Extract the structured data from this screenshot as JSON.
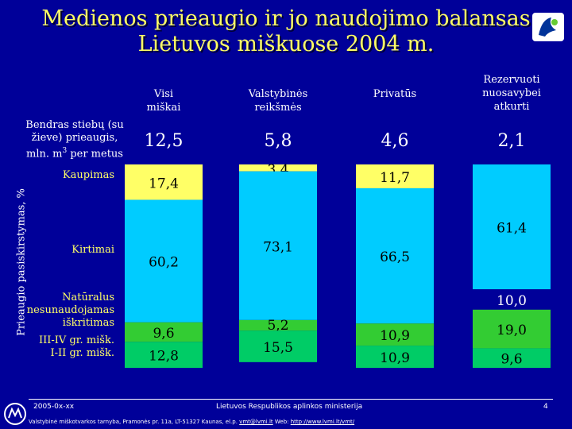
{
  "page": {
    "title_line1": "Medienos prieaugio ir jo naudojimo balansas",
    "title_line2": "Lietuvos miškuose 2004 m.",
    "row_header_line1": "Bendras stiebų (su",
    "row_header_line2": "žieve) prieaugis,",
    "row_header_line3": "mln. m",
    "row_header_sup": "3",
    "row_header_line3b": " per metus",
    "footer_date": "2005-0x-xx",
    "footer_ministry": "Lietuvos Respublikos aplinkos ministerija",
    "footer_page": "4",
    "footer_address": "Valstybinė miškotvarkos tarnyba, Pramonės pr. 11a, LT-51327 Kaunas, el.p. ",
    "footer_email": "vmt@lvmi.lt",
    "footer_web_label": " Web: ",
    "footer_web": "http://www.lvmi.lt/vmt/"
  },
  "colors": {
    "background": "#000099",
    "kaupimas": "#ffff66",
    "kirtimai": "#00ccff",
    "naturalus": "#33cc33",
    "grade1": "#00cc66",
    "title": "#ffff66"
  },
  "chart_data": {
    "type": "bar",
    "stacked": true,
    "percent": true,
    "ylabel": "Prieaugio pasiskirstymas, %",
    "categories": [
      "Visi miškai",
      "Valstybinės reikšmės",
      "Privatūs",
      "Rezervuoti nuosavybei atkurti"
    ],
    "production": [
      "12,5",
      "5,8",
      "4,6",
      "2,1"
    ],
    "series": [
      {
        "name": "Kaupimas",
        "values": [
          17.4,
          3.4,
          11.7,
          0
        ],
        "labels": [
          "17,4",
          "3,4",
          "11,7",
          ""
        ]
      },
      {
        "name": "Kirtimai",
        "values": [
          60.2,
          73.1,
          66.5,
          61.4
        ],
        "labels": [
          "60,2",
          "73,1",
          "66,5",
          "61,4"
        ]
      },
      {
        "name": "Natūralus nesunaudojamas iškritimas",
        "values": [
          0,
          0,
          0,
          10.0
        ],
        "labels": [
          "",
          "",
          "",
          "10,0"
        ]
      },
      {
        "name": "III-IV gr. mišk.",
        "values": [
          9.6,
          5.2,
          10.9,
          19.0
        ],
        "labels": [
          "9,6",
          "5,2",
          "10,9",
          "19,0"
        ]
      },
      {
        "name": "I-II gr. mišk.",
        "values": [
          12.8,
          15.5,
          10.9,
          9.6
        ],
        "labels": [
          "12,8",
          "15,5",
          "10,9",
          "9,6"
        ]
      }
    ],
    "ylim": [
      0,
      100
    ]
  }
}
